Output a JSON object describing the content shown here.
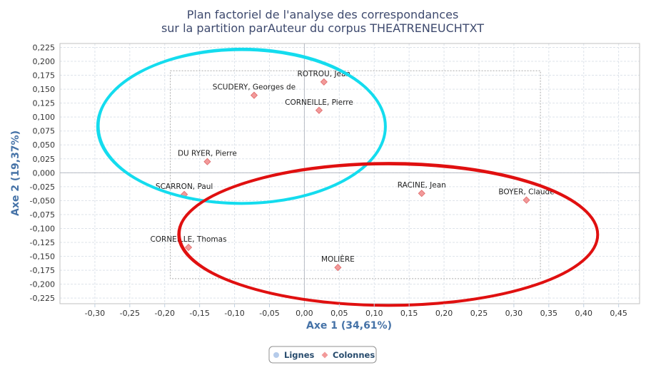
{
  "chart_data": {
    "type": "scatter",
    "title": "Plan factoriel de l'analyse des correspondances",
    "subtitle": "sur la partition parAuteur du corpus THEATRENEUCHTXT",
    "xlabel": "Axe 1 (34,61%)",
    "ylabel": "Axe 2 (19,37%)",
    "xlim": [
      -0.35,
      0.48
    ],
    "ylim": [
      -0.235,
      0.232
    ],
    "x_ticks": [
      "-0,30",
      "-0,25",
      "-0,20",
      "-0,15",
      "-0,10",
      "-0,05",
      "0,00",
      "0,05",
      "0,10",
      "0,15",
      "0,20",
      "0,25",
      "0,30",
      "0,35",
      "0,40",
      "0,45"
    ],
    "x_tick_values": [
      -0.3,
      -0.25,
      -0.2,
      -0.15,
      -0.1,
      -0.05,
      0.0,
      0.05,
      0.1,
      0.15,
      0.2,
      0.25,
      0.3,
      0.35,
      0.4,
      0.45
    ],
    "y_ticks": [
      "0,225",
      "0,200",
      "0,175",
      "0,150",
      "0,125",
      "0,100",
      "0,075",
      "0,050",
      "0,025",
      "0,000",
      "-0,025",
      "-0,050",
      "-0,075",
      "-0,100",
      "-0,125",
      "-0,150",
      "-0,175",
      "-0,200",
      "-0,225"
    ],
    "y_tick_values": [
      0.225,
      0.2,
      0.175,
      0.15,
      0.125,
      0.1,
      0.075,
      0.05,
      0.025,
      0.0,
      -0.025,
      -0.05,
      -0.075,
      -0.1,
      -0.125,
      -0.15,
      -0.175,
      -0.2,
      -0.225
    ],
    "grid": true,
    "legend_placement": "bottom-center",
    "series": [
      {
        "name": "Lignes",
        "color": "#b5cbea",
        "points": []
      },
      {
        "name": "Colonnes",
        "color": "#f29a9a",
        "points": [
          {
            "label": "ROTROU, Jean",
            "x": 0.028,
            "y": 0.163
          },
          {
            "label": "SCUDERY, Georges de",
            "x": -0.072,
            "y": 0.139
          },
          {
            "label": "CORNEILLE, Pierre",
            "x": 0.021,
            "y": 0.112
          },
          {
            "label": "DU RYER, Pierre",
            "x": -0.139,
            "y": 0.02
          },
          {
            "label": "SCARRON, Paul",
            "x": -0.172,
            "y": -0.039
          },
          {
            "label": "RACINE, Jean",
            "x": 0.168,
            "y": -0.037
          },
          {
            "label": "BOYER, Claude",
            "x": 0.318,
            "y": -0.049
          },
          {
            "label": "CORNEILLE, Thomas",
            "x": -0.166,
            "y": -0.134
          },
          {
            "label": "MOLIÈRE",
            "x": 0.048,
            "y": -0.17
          }
        ]
      }
    ],
    "annotations": {
      "selection_rect": {
        "x1": -0.192,
        "x2": 0.338,
        "y1": 0.183,
        "y2": -0.19,
        "color": "#aaaaaa"
      },
      "ellipses": [
        {
          "color": "#14dcee",
          "cx": -0.09,
          "cy": 0.083,
          "rx": 0.206,
          "ry": 0.138
        },
        {
          "color": "#e01010",
          "cx": 0.12,
          "cy": -0.111,
          "rx": 0.3,
          "ry": 0.127
        }
      ]
    }
  }
}
